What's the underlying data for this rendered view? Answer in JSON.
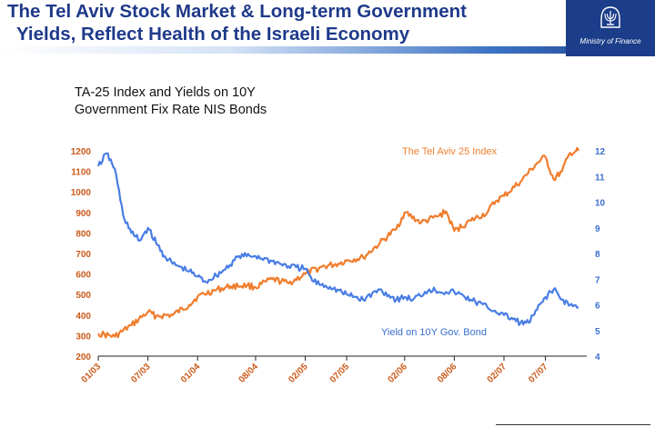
{
  "header": {
    "title_line1": "The Tel Aviv Stock Market & Long-term Government",
    "title_line2": "Yields, Reflect Health of the Israeli Economy",
    "org": "Ministry of Finance"
  },
  "chart_data": {
    "type": "line",
    "title": "TA-25 Index and Yields on 10Y",
    "title_line2": "Government Fix Rate NIS Bonds",
    "y_left": {
      "min": 200,
      "max": 1200,
      "ticks": [
        200,
        300,
        400,
        500,
        600,
        700,
        800,
        900,
        1000,
        1100,
        1200
      ],
      "color": "#cc5a1a"
    },
    "y_right": {
      "min": 4,
      "max": 12,
      "ticks": [
        4,
        5,
        6,
        7,
        8,
        9,
        10,
        11,
        12
      ],
      "color": "#3a6fd0"
    },
    "x_range": [
      "01/03",
      "12/07"
    ],
    "x_ticks": [
      "01/03",
      "07/03",
      "01/04",
      "08/04",
      "02/05",
      "07/05",
      "02/06",
      "08/06",
      "02/07",
      "07/07"
    ],
    "grid": false,
    "series": [
      {
        "name": "The Tel Aviv 25 Index",
        "axis": "left",
        "color": "#f07d2c",
        "points": [
          [
            "01/03",
            310
          ],
          [
            "03/03",
            295
          ],
          [
            "05/03",
            350
          ],
          [
            "07/03",
            415
          ],
          [
            "08/03",
            395
          ],
          [
            "10/03",
            400
          ],
          [
            "12/03",
            450
          ],
          [
            "01/04",
            490
          ],
          [
            "03/04",
            520
          ],
          [
            "05/04",
            540
          ],
          [
            "07/04",
            545
          ],
          [
            "08/04",
            535
          ],
          [
            "10/04",
            575
          ],
          [
            "12/04",
            555
          ],
          [
            "02/05",
            600
          ],
          [
            "04/05",
            635
          ],
          [
            "06/05",
            650
          ],
          [
            "07/05",
            665
          ],
          [
            "09/05",
            680
          ],
          [
            "11/05",
            750
          ],
          [
            "01/06",
            820
          ],
          [
            "02/06",
            900
          ],
          [
            "04/06",
            850
          ],
          [
            "06/06",
            880
          ],
          [
            "07/06",
            905
          ],
          [
            "08/06",
            810
          ],
          [
            "10/06",
            860
          ],
          [
            "12/06",
            900
          ],
          [
            "01/07",
            955
          ],
          [
            "02/07",
            980
          ],
          [
            "04/07",
            1050
          ],
          [
            "06/07",
            1140
          ],
          [
            "07/07",
            1170
          ],
          [
            "08/07",
            1060
          ],
          [
            "09/07",
            1100
          ],
          [
            "10/07",
            1190
          ],
          [
            "11/07",
            1200
          ]
        ]
      },
      {
        "name": "Yield on 10Y Gov. Bond",
        "axis": "right",
        "color": "#4a7ee6",
        "points": [
          [
            "01/03",
            11.4
          ],
          [
            "02/03",
            11.9
          ],
          [
            "03/03",
            11.3
          ],
          [
            "04/03",
            9.5
          ],
          [
            "05/03",
            8.8
          ],
          [
            "06/03",
            8.5
          ],
          [
            "07/03",
            9.0
          ],
          [
            "08/03",
            8.4
          ],
          [
            "09/03",
            7.9
          ],
          [
            "10/03",
            7.6
          ],
          [
            "12/03",
            7.3
          ],
          [
            "01/04",
            7.1
          ],
          [
            "02/04",
            6.9
          ],
          [
            "04/04",
            7.3
          ],
          [
            "06/04",
            7.9
          ],
          [
            "08/04",
            7.9
          ],
          [
            "10/04",
            7.7
          ],
          [
            "12/04",
            7.5
          ],
          [
            "02/05",
            7.4
          ],
          [
            "03/05",
            6.9
          ],
          [
            "05/05",
            6.7
          ],
          [
            "07/05",
            6.4
          ],
          [
            "09/05",
            6.2
          ],
          [
            "11/05",
            6.6
          ],
          [
            "01/06",
            6.2
          ],
          [
            "02/06",
            6.3
          ],
          [
            "03/06",
            6.2
          ],
          [
            "05/06",
            6.6
          ],
          [
            "07/06",
            6.5
          ],
          [
            "08/06",
            6.5
          ],
          [
            "10/06",
            6.2
          ],
          [
            "12/06",
            5.9
          ],
          [
            "02/07",
            5.6
          ],
          [
            "04/07",
            5.3
          ],
          [
            "05/07",
            5.3
          ],
          [
            "06/07",
            5.8
          ],
          [
            "07/07",
            6.3
          ],
          [
            "08/07",
            6.6
          ],
          [
            "09/07",
            6.2
          ],
          [
            "10/07",
            6.0
          ],
          [
            "11/07",
            5.9
          ]
        ]
      }
    ],
    "annotations": [
      {
        "text": "The Tel Aviv 25 Index",
        "series": 0
      },
      {
        "text": "Yield on 10Y Gov. Bond",
        "series": 1
      }
    ]
  }
}
